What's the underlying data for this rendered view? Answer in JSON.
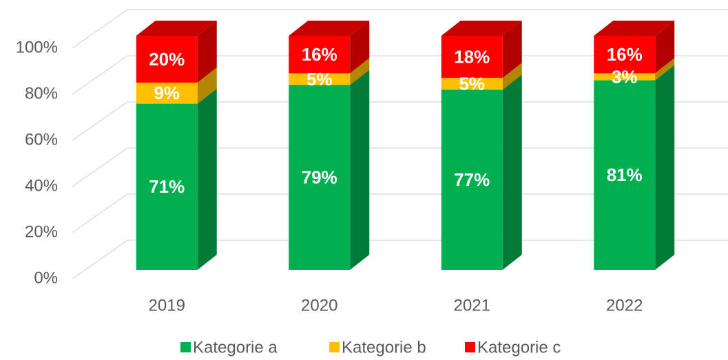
{
  "chart_data": {
    "type": "bar3d_stacked",
    "categories": [
      "2019",
      "2020",
      "2021",
      "2022"
    ],
    "series": [
      {
        "name": "Kategorie a",
        "color": "#00b050",
        "values": [
          71,
          79,
          77,
          81
        ],
        "value_labels": [
          "71%",
          "79%",
          "77%",
          "81%"
        ]
      },
      {
        "name": "Kategorie b",
        "color": "#ffc000",
        "values": [
          9,
          5,
          5,
          3
        ],
        "value_labels": [
          "9%",
          "5%",
          "5%",
          "3%"
        ]
      },
      {
        "name": "Kategorie c",
        "color": "#ff0000",
        "values": [
          20,
          16,
          18,
          16
        ],
        "value_labels": [
          "20%",
          "16%",
          "18%",
          "16%"
        ]
      }
    ],
    "ylim": [
      0,
      100
    ],
    "yticks": [
      {
        "value": 0,
        "label": "0%"
      },
      {
        "value": 20,
        "label": "20%"
      },
      {
        "value": 40,
        "label": "40%"
      },
      {
        "value": 60,
        "label": "60%"
      },
      {
        "value": 80,
        "label": "80%"
      },
      {
        "value": 100,
        "label": "100%"
      }
    ],
    "grid": true,
    "legend": "bottom"
  }
}
